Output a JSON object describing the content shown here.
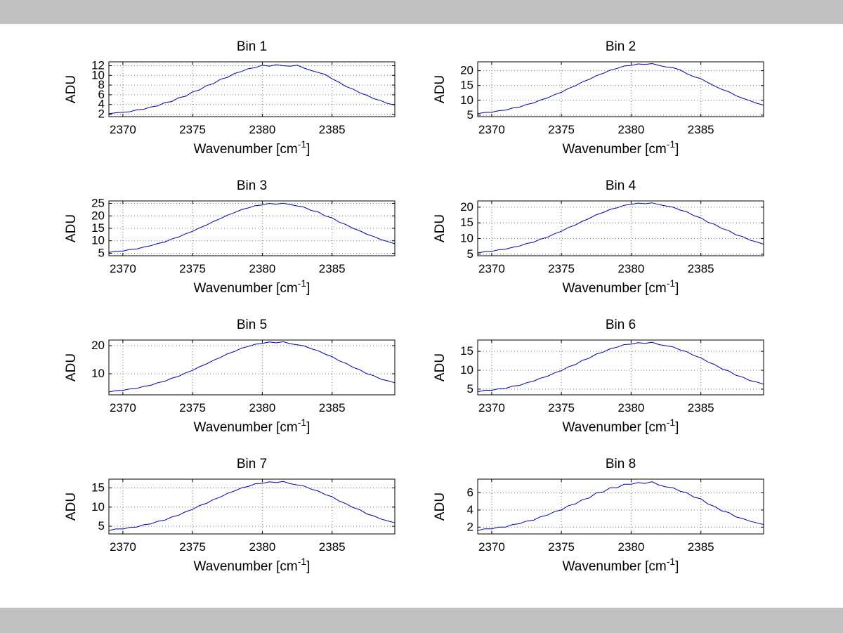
{
  "figure": {
    "background_color": "#ffffff",
    "letterbox_color": "#c0c0c0",
    "line_color": "#0000aa",
    "grid_color": "#777777",
    "axis_color": "#000000",
    "text_color": "#000000"
  },
  "labels": {
    "ylabel": "ADU",
    "xlabel_prefix": "Wavenumber [cm",
    "xlabel_sup": "-1",
    "xlabel_suffix": "]"
  },
  "chart_data": {
    "type": "line",
    "grid": true,
    "legend": null,
    "xlabel": "Wavenumber [cm^{-1}]",
    "ylabel": "ADU",
    "xlim": [
      2369,
      2389.5
    ],
    "xticks": [
      2370,
      2375,
      2380,
      2385
    ],
    "x": [
      2369.0,
      2369.5,
      2370.0,
      2370.5,
      2371.0,
      2371.5,
      2372.0,
      2372.5,
      2373.0,
      2373.5,
      2374.0,
      2374.5,
      2375.0,
      2375.5,
      2376.0,
      2376.5,
      2377.0,
      2377.5,
      2378.0,
      2378.5,
      2379.0,
      2379.5,
      2380.0,
      2380.5,
      2381.0,
      2381.5,
      2382.0,
      2382.5,
      2383.0,
      2383.5,
      2384.0,
      2384.5,
      2385.0,
      2385.5,
      2386.0,
      2386.5,
      2387.0,
      2387.5,
      2388.0,
      2388.5,
      2389.0,
      2389.5
    ],
    "subplots": [
      {
        "title": "Bin 1",
        "ylim": [
          1.5,
          12.8
        ],
        "yticks": [
          2,
          4,
          6,
          8,
          10,
          12
        ],
        "y": [
          2.1,
          2.3,
          2.4,
          2.5,
          2.9,
          3.0,
          3.5,
          3.7,
          4.4,
          4.6,
          5.4,
          5.7,
          6.6,
          7.0,
          7.9,
          8.3,
          9.2,
          9.6,
          10.4,
          10.8,
          11.4,
          11.6,
          12.1,
          11.9,
          12.2,
          12.0,
          11.9,
          12.1,
          11.5,
          11.0,
          10.6,
          10.2,
          9.3,
          8.6,
          7.7,
          7.2,
          6.4,
          5.9,
          5.2,
          4.8,
          4.2,
          3.9
        ]
      },
      {
        "title": "Bin 2",
        "ylim": [
          4.5,
          23.0
        ],
        "yticks": [
          5,
          10,
          15,
          20
        ],
        "y": [
          5.5,
          5.9,
          6.0,
          6.5,
          6.7,
          7.4,
          7.7,
          8.6,
          9.1,
          10.1,
          10.8,
          11.9,
          12.7,
          14.0,
          14.9,
          16.2,
          17.1,
          18.3,
          19.1,
          20.2,
          20.8,
          21.6,
          21.8,
          22.3,
          22.1,
          22.4,
          21.8,
          21.3,
          21.0,
          20.3,
          19.0,
          18.0,
          17.3,
          16.0,
          14.8,
          13.7,
          12.9,
          11.6,
          10.7,
          9.9,
          9.0,
          8.4
        ]
      },
      {
        "title": "Bin 3",
        "ylim": [
          4.0,
          26.0
        ],
        "yticks": [
          5,
          10,
          15,
          20,
          25
        ],
        "y": [
          5.3,
          5.8,
          5.9,
          6.5,
          6.7,
          7.5,
          8.0,
          8.9,
          9.5,
          10.7,
          11.5,
          12.8,
          13.8,
          15.2,
          16.3,
          17.8,
          18.9,
          20.3,
          21.3,
          22.5,
          23.2,
          24.1,
          24.4,
          25.0,
          24.7,
          25.1,
          24.5,
          24.0,
          23.5,
          22.2,
          21.6,
          20.0,
          19.2,
          17.5,
          16.5,
          15.0,
          14.0,
          12.6,
          11.7,
          10.5,
          9.7,
          8.8
        ]
      },
      {
        "title": "Bin 4",
        "ylim": [
          4.5,
          22.0
        ],
        "yticks": [
          5,
          10,
          15,
          20
        ],
        "y": [
          5.4,
          5.8,
          5.9,
          6.4,
          6.6,
          7.2,
          7.6,
          8.4,
          8.8,
          9.8,
          10.4,
          11.5,
          12.3,
          13.5,
          14.3,
          15.5,
          16.4,
          17.6,
          18.3,
          19.3,
          19.8,
          20.6,
          20.9,
          21.3,
          21.1,
          21.4,
          20.8,
          20.4,
          20.0,
          19.1,
          18.5,
          17.3,
          16.6,
          15.2,
          14.5,
          13.2,
          12.5,
          11.2,
          10.6,
          9.5,
          8.9,
          8.2
        ]
      },
      {
        "title": "Bin 5",
        "ylim": [
          2.5,
          22.0
        ],
        "yticks": [
          10,
          20
        ],
        "y": [
          3.5,
          4.0,
          4.1,
          4.6,
          4.8,
          5.5,
          5.9,
          6.8,
          7.3,
          8.4,
          9.1,
          10.3,
          11.2,
          12.5,
          13.5,
          14.8,
          15.8,
          17.1,
          17.9,
          19.1,
          19.7,
          20.5,
          20.8,
          21.3,
          21.0,
          21.4,
          20.7,
          20.3,
          19.9,
          18.9,
          18.2,
          17.0,
          16.1,
          14.6,
          13.7,
          12.3,
          11.4,
          10.0,
          9.3,
          8.1,
          7.5,
          6.8
        ]
      },
      {
        "title": "Bin 6",
        "ylim": [
          3.5,
          18.0
        ],
        "yticks": [
          5,
          10,
          15
        ],
        "y": [
          4.3,
          4.7,
          4.7,
          5.1,
          5.2,
          5.8,
          6.0,
          6.7,
          7.1,
          7.9,
          8.4,
          9.3,
          9.9,
          10.9,
          11.5,
          12.6,
          13.2,
          14.3,
          14.8,
          15.7,
          16.1,
          16.8,
          16.9,
          17.3,
          17.1,
          17.4,
          16.8,
          16.5,
          16.2,
          15.4,
          14.9,
          13.9,
          13.3,
          12.2,
          11.5,
          10.4,
          9.8,
          8.7,
          8.2,
          7.3,
          6.9,
          6.3
        ]
      },
      {
        "title": "Bin 7",
        "ylim": [
          3.0,
          17.3
        ],
        "yticks": [
          5,
          10,
          15
        ],
        "y": [
          3.9,
          4.3,
          4.3,
          4.7,
          4.8,
          5.4,
          5.6,
          6.3,
          6.6,
          7.4,
          7.9,
          8.8,
          9.4,
          10.4,
          11.0,
          12.0,
          12.6,
          13.6,
          14.2,
          15.0,
          15.4,
          16.1,
          16.2,
          16.6,
          16.4,
          16.7,
          16.1,
          15.8,
          15.5,
          14.7,
          14.2,
          13.3,
          12.7,
          11.6,
          10.9,
          9.9,
          9.3,
          8.2,
          7.7,
          6.9,
          6.4,
          5.9
        ]
      },
      {
        "title": "Bin 8",
        "ylim": [
          1.2,
          7.6
        ],
        "yticks": [
          2,
          4,
          6
        ],
        "y": [
          1.6,
          1.8,
          1.8,
          2.0,
          2.0,
          2.3,
          2.4,
          2.7,
          2.8,
          3.2,
          3.4,
          3.8,
          4.0,
          4.5,
          4.7,
          5.2,
          5.4,
          6.0,
          6.1,
          6.6,
          6.6,
          7.0,
          7.0,
          7.2,
          7.1,
          7.3,
          6.9,
          6.7,
          6.6,
          6.2,
          6.0,
          5.5,
          5.3,
          4.7,
          4.4,
          3.9,
          3.7,
          3.2,
          3.0,
          2.7,
          2.5,
          2.3
        ]
      }
    ]
  }
}
